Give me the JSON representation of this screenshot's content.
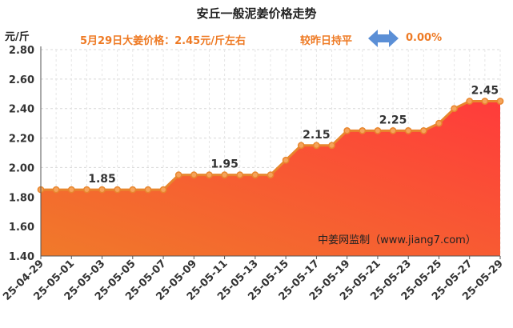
{
  "title": "安丘一般泥姜价格走势",
  "y_unit": "元/斤",
  "subtitle": "5月29日大姜价格：2.45元/斤左右",
  "compare_label": "较昨日持平",
  "change_value": "0.00%",
  "watermark": "中姜网监制（www.jiang7.com）",
  "colors": {
    "line": "#e8862e",
    "fill_top": "#ff3b3b",
    "fill_bottom": "#f07a2a",
    "accent": "#ee7a24",
    "arrow": "#5b8fd6"
  },
  "chart_data": {
    "type": "area",
    "x": [
      "25-04-29",
      "25-04-30",
      "25-05-01",
      "25-05-02",
      "25-05-03",
      "25-05-04",
      "25-05-05",
      "25-05-06",
      "25-05-07",
      "25-05-08",
      "25-05-09",
      "25-05-10",
      "25-05-11",
      "25-05-12",
      "25-05-13",
      "25-05-14",
      "25-05-15",
      "25-05-16",
      "25-05-17",
      "25-05-18",
      "25-05-19",
      "25-05-20",
      "25-05-21",
      "25-05-22",
      "25-05-23",
      "25-05-24",
      "25-05-25",
      "25-05-26",
      "25-05-27",
      "25-05-28",
      "25-05-29"
    ],
    "values": [
      1.85,
      1.85,
      1.85,
      1.85,
      1.85,
      1.85,
      1.85,
      1.85,
      1.85,
      1.95,
      1.95,
      1.95,
      1.95,
      1.95,
      1.95,
      1.95,
      2.05,
      2.15,
      2.15,
      2.15,
      2.25,
      2.25,
      2.25,
      2.25,
      2.25,
      2.25,
      2.3,
      2.4,
      2.45,
      2.45,
      2.45
    ],
    "tick_labels": [
      "25-04-29",
      "25-05-01",
      "25-05-03",
      "25-05-05",
      "25-05-07",
      "25-05-09",
      "25-05-11",
      "25-05-13",
      "25-05-15",
      "25-05-17",
      "25-05-19",
      "25-05-21",
      "25-05-23",
      "25-05-25",
      "25-05-27",
      "25-05-29"
    ],
    "y_ticks": [
      "1.40",
      "1.60",
      "1.80",
      "2.00",
      "2.20",
      "2.40",
      "2.60",
      "2.80"
    ],
    "ylim": [
      1.4,
      2.8
    ],
    "annotations": [
      {
        "x": "25-05-03",
        "y": 1.85,
        "text": "1.85"
      },
      {
        "x": "25-05-11",
        "y": 1.95,
        "text": "1.95"
      },
      {
        "x": "25-05-17",
        "y": 2.15,
        "text": "2.15"
      },
      {
        "x": "25-05-22",
        "y": 2.25,
        "text": "2.25"
      },
      {
        "x": "25-05-28",
        "y": 2.45,
        "text": "2.45"
      }
    ],
    "grid": true
  }
}
